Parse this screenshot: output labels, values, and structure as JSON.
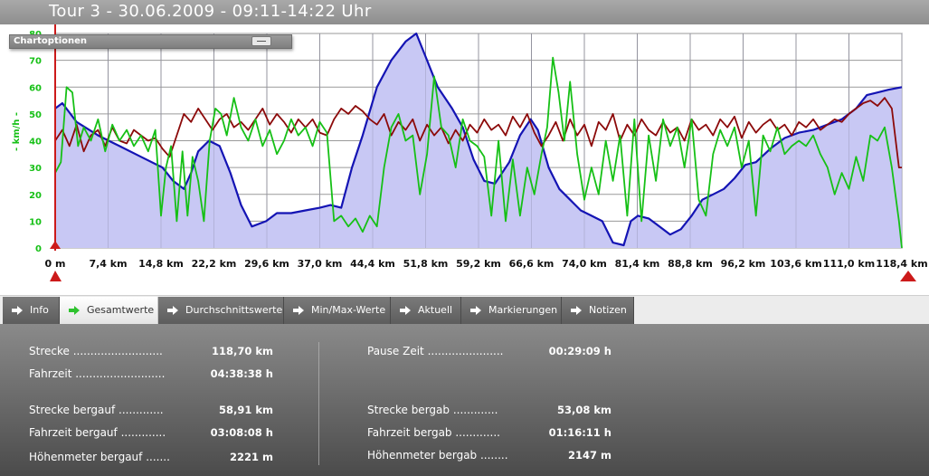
{
  "header": {
    "title": "Tour 3 - 30.06.2009 - 09:11-14:22 Uhr"
  },
  "chart_options": {
    "label": "Chartoptionen"
  },
  "chart_data": {
    "type": "line",
    "ylabel": "- km/h -",
    "ylim": [
      0,
      80
    ],
    "y_ticks": [
      "0",
      "10",
      "20",
      "30",
      "40",
      "50",
      "60",
      "70",
      "80"
    ],
    "xlim": [
      0,
      118.4
    ],
    "x_ticks": [
      "0 m",
      "7,4 km",
      "14,8 km",
      "22,2 km",
      "29,6 km",
      "37,0 km",
      "44,4 km",
      "51,8 km",
      "59,2 km",
      "66,6 km",
      "74,0 km",
      "81,4 km",
      "88,8 km",
      "96,2 km",
      "103,6 km",
      "111,0 km",
      "118,4 km"
    ],
    "grid": true,
    "series": [
      {
        "color": "#1414b4",
        "fill": "#c8c8f4",
        "x": [
          0,
          1,
          3,
          6,
          9,
          12,
          15,
          16.5,
          18,
          19,
          20,
          21.5,
          23,
          24.5,
          26,
          27.5,
          29.5,
          31,
          33,
          35,
          37,
          38.5,
          40,
          41.5,
          43,
          45,
          47,
          49,
          50.5,
          52,
          53.5,
          55.5,
          57,
          58.5,
          60,
          61.5,
          63.5,
          65,
          66.5,
          67.5,
          69,
          70.5,
          72,
          73.5,
          75,
          76.5,
          78,
          79.5,
          80.5,
          81.5,
          83,
          84.5,
          86,
          87.5,
          89,
          90.5,
          92,
          93.5,
          95,
          96.5,
          98,
          100,
          102,
          104,
          106,
          108,
          110,
          112,
          113.5,
          115,
          116.5,
          118.4
        ],
        "y": [
          52,
          54,
          47,
          42,
          38,
          34,
          30,
          25,
          22,
          28,
          36,
          40,
          38,
          28,
          16,
          8,
          10,
          13,
          13,
          14,
          15,
          16,
          15,
          30,
          42,
          60,
          70,
          77,
          80,
          70,
          60,
          52,
          45,
          33,
          25,
          24,
          32,
          42,
          48,
          44,
          30,
          22,
          18,
          14,
          12,
          10,
          2,
          1,
          10,
          12,
          11,
          8,
          5,
          7,
          12,
          18,
          20,
          22,
          26,
          31,
          32,
          37,
          41,
          43,
          44,
          46,
          48,
          52,
          57,
          58,
          59,
          60
        ]
      },
      {
        "color": "#8c0a0a",
        "x": [
          0,
          1,
          2,
          3,
          4,
          5,
          6,
          7,
          8,
          9,
          10,
          11,
          12,
          13,
          14,
          15,
          16,
          17,
          18,
          19,
          20,
          21,
          22,
          23,
          24,
          25,
          26,
          27,
          28,
          29,
          30,
          31,
          32,
          33,
          34,
          35,
          36,
          37,
          38,
          39,
          40,
          41,
          42,
          43,
          44,
          45,
          46,
          47,
          48,
          49,
          50,
          51,
          52,
          53,
          54,
          55,
          56,
          57,
          58,
          59,
          60,
          61,
          62,
          63,
          64,
          65,
          66,
          67,
          68,
          69,
          70,
          71,
          72,
          73,
          74,
          75,
          76,
          77,
          78,
          79,
          80,
          81,
          82,
          83,
          84,
          85,
          86,
          87,
          88,
          89,
          90,
          91,
          92,
          93,
          94,
          95,
          96,
          97,
          98,
          99,
          100,
          101,
          102,
          103,
          104,
          105,
          106,
          107,
          108,
          109,
          110,
          111,
          112,
          113,
          114,
          115,
          116,
          117,
          118,
          118.4
        ],
        "y": [
          40,
          44,
          38,
          46,
          36,
          42,
          44,
          38,
          45,
          40,
          39,
          44,
          42,
          40,
          41,
          37,
          34,
          42,
          50,
          47,
          52,
          48,
          44,
          48,
          50,
          45,
          47,
          44,
          48,
          52,
          46,
          50,
          47,
          43,
          48,
          45,
          48,
          43,
          42,
          48,
          52,
          50,
          53,
          51,
          48,
          46,
          50,
          42,
          47,
          44,
          48,
          40,
          46,
          42,
          45,
          39,
          44,
          40,
          46,
          43,
          48,
          44,
          46,
          42,
          49,
          45,
          50,
          43,
          38,
          42,
          47,
          40,
          48,
          42,
          46,
          38,
          47,
          44,
          50,
          40,
          46,
          42,
          48,
          44,
          42,
          47,
          43,
          45,
          40,
          48,
          44,
          46,
          42,
          48,
          45,
          49,
          41,
          47,
          43,
          46,
          48,
          44,
          46,
          42,
          47,
          45,
          48,
          44,
          46,
          48,
          47,
          50,
          52,
          54,
          55,
          53,
          56,
          52,
          30,
          30
        ]
      },
      {
        "color": "#16c016",
        "x": [
          0,
          0.8,
          1.6,
          2.4,
          3.2,
          4,
          5,
          6,
          7,
          8,
          9,
          10,
          11,
          12,
          13,
          14,
          14.8,
          15.5,
          16.2,
          17,
          17.8,
          18.5,
          19.2,
          20,
          20.8,
          21.6,
          22.4,
          23.2,
          24,
          25,
          26,
          27,
          28,
          29,
          30,
          31,
          32,
          33,
          34,
          35,
          36,
          37,
          38,
          39,
          40,
          41,
          42,
          43,
          44,
          45,
          46,
          47,
          48,
          49,
          50,
          51,
          52,
          53,
          54,
          55,
          56,
          57,
          58,
          59,
          60,
          61,
          62,
          63,
          64,
          65,
          66,
          67,
          68,
          68.8,
          69.6,
          70.4,
          71.2,
          72,
          73,
          74,
          75,
          76,
          77,
          78,
          79,
          80,
          81,
          82,
          83,
          84,
          85,
          86,
          87,
          88,
          89,
          90,
          91,
          92,
          93,
          94,
          95,
          96,
          97,
          98,
          99,
          100,
          101,
          102,
          103,
          104,
          105,
          106,
          107,
          108,
          109,
          110,
          111,
          112,
          113,
          114,
          115,
          116,
          117,
          118,
          118.4
        ],
        "y": [
          28,
          32,
          60,
          58,
          38,
          45,
          40,
          48,
          36,
          46,
          40,
          44,
          38,
          42,
          36,
          44,
          12,
          30,
          38,
          10,
          36,
          12,
          34,
          25,
          10,
          40,
          52,
          50,
          42,
          56,
          45,
          40,
          48,
          38,
          44,
          35,
          40,
          48,
          42,
          45,
          38,
          47,
          43,
          10,
          12,
          8,
          11,
          6,
          12,
          8,
          30,
          45,
          50,
          40,
          42,
          20,
          35,
          64,
          45,
          42,
          30,
          48,
          40,
          38,
          34,
          12,
          40,
          10,
          33,
          12,
          30,
          20,
          35,
          45,
          71,
          58,
          40,
          62,
          35,
          18,
          30,
          20,
          40,
          25,
          42,
          12,
          48,
          10,
          42,
          25,
          48,
          38,
          45,
          30,
          48,
          18,
          12,
          35,
          44,
          38,
          45,
          30,
          40,
          12,
          42,
          36,
          45,
          35,
          38,
          40,
          38,
          42,
          35,
          30,
          20,
          28,
          22,
          34,
          25,
          42,
          40,
          45,
          30,
          10,
          0
        ]
      }
    ]
  },
  "tabs": [
    {
      "label": "Info"
    },
    {
      "label": "Gesamtwerte"
    },
    {
      "label": "Durchschnittswerte"
    },
    {
      "label": "Min/Max-Werte"
    },
    {
      "label": "Aktuell"
    },
    {
      "label": "Markierungen"
    },
    {
      "label": "Notizen"
    }
  ],
  "stats": {
    "left": [
      {
        "label": "Strecke ..........................",
        "value": "118,70 km"
      },
      {
        "label": "Fahrzeit ..........................",
        "value": "04:38:38 h"
      },
      {
        "label": "Strecke bergauf .............",
        "value": "58,91 km"
      },
      {
        "label": "Fahrzeit bergauf .............",
        "value": "03:08:08 h"
      },
      {
        "label": "Höhenmeter bergauf .......",
        "value": "2221 m"
      }
    ],
    "right": [
      {
        "label": "Pause Zeit ......................",
        "value": "00:29:09 h"
      },
      {
        "label": "Strecke bergab .............",
        "value": "53,08 km"
      },
      {
        "label": "Fahrzeit bergab .............",
        "value": "01:16:11 h"
      },
      {
        "label": "Höhenmeter bergab ........",
        "value": "2147 m"
      }
    ]
  },
  "colors": {
    "tab_icon_active": "#2ec22e",
    "tab_icon": "#ffffff"
  }
}
